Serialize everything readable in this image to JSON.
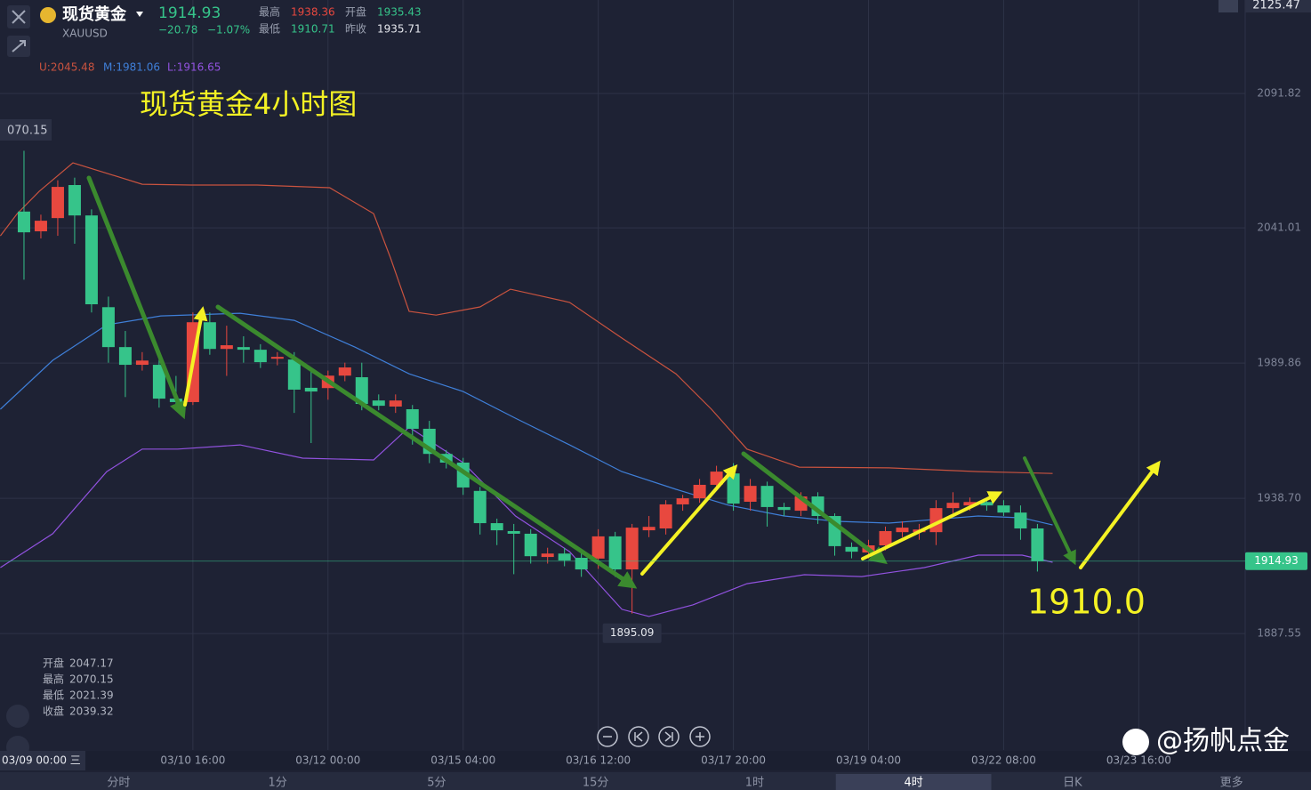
{
  "header": {
    "name": "现货黄金",
    "code": "XAUUSD",
    "price": "1914.93",
    "change": "−20.78",
    "change_pct": "−1.07%",
    "stats": [
      {
        "label": "最高",
        "value": "1938.36"
      },
      {
        "label": "开盘",
        "value": "1935.43"
      },
      {
        "label": "最低",
        "value": "1910.71"
      },
      {
        "label": "昨收",
        "value": "1935.71"
      }
    ]
  },
  "chart_data": {
    "type": "candlestick",
    "title": "现货黄金4小时图",
    "annotation": "1910.0",
    "top_value": "2125.47",
    "left_value": "070.15",
    "crosshair_label": "03/09 00:00 三",
    "ylim": [
      1843.5,
      2127.2
    ],
    "yticks": [
      2091.82,
      2041.01,
      1989.86,
      {
        "value": 1938.7,
        "label": "1938.70"
      },
      1887.55
    ],
    "xlim": [
      -1.42,
      72.3
    ],
    "xticks": [
      {
        "value": 10,
        "label": "03/10 16:00"
      },
      {
        "value": 18,
        "label": "03/12 00:00"
      },
      {
        "value": 26,
        "label": "03/15 04:00"
      },
      {
        "value": 34,
        "label": "03/16 12:00"
      },
      {
        "value": 42,
        "label": "03/17 20:00"
      },
      {
        "value": 50,
        "label": "03/19 04:00"
      },
      {
        "value": 58,
        "label": "03/22 08:00"
      },
      {
        "value": 66,
        "label": "03/23 16:00"
      }
    ],
    "grid": true,
    "up_color": "#e8483f",
    "down_color": "#36c48a",
    "candles": [
      {
        "open": 2047.17,
        "high": 2070.15,
        "low": 2021.39,
        "close": 2039.32
      },
      {
        "open": 2039.7,
        "high": 2046,
        "low": 2037,
        "close": 2043.7
      },
      {
        "open": 2044.7,
        "high": 2059,
        "low": 2038,
        "close": 2056.5
      },
      {
        "open": 2057.2,
        "high": 2060,
        "low": 2035,
        "close": 2045.7
      },
      {
        "open": 2045.7,
        "high": 2048,
        "low": 2009,
        "close": 2012.1
      },
      {
        "open": 2011,
        "high": 2015,
        "low": 1990,
        "close": 1995.9
      },
      {
        "open": 1995.9,
        "high": 2002,
        "low": 1977,
        "close": 1989.2
      },
      {
        "open": 1989.2,
        "high": 1994,
        "low": 1987,
        "close": 1990.8
      },
      {
        "open": 1989.2,
        "high": 1992,
        "low": 1973,
        "close": 1976.4
      },
      {
        "open": 1976.4,
        "high": 1985,
        "low": 1972,
        "close": 1975.1
      },
      {
        "open": 1975.1,
        "high": 2009,
        "low": 1974,
        "close": 2005.3
      },
      {
        "open": 2005.3,
        "high": 2009,
        "low": 1993,
        "close": 1995.2
      },
      {
        "open": 1995.2,
        "high": 2004,
        "low": 1985,
        "close": 1996.6
      },
      {
        "open": 1995.9,
        "high": 2000,
        "low": 1990,
        "close": 1994.9
      },
      {
        "open": 1994.9,
        "high": 1997,
        "low": 1988,
        "close": 1990.2
      },
      {
        "open": 1991.5,
        "high": 1994,
        "low": 1989,
        "close": 1992.2
      },
      {
        "open": 1991.2,
        "high": 1994,
        "low": 1971,
        "close": 1979.8
      },
      {
        "open": 1980.5,
        "high": 1988,
        "low": 1959.6,
        "close": 1979.1
      },
      {
        "open": 1980.4,
        "high": 1987,
        "low": 1976,
        "close": 1985.1
      },
      {
        "open": 1985.1,
        "high": 1990,
        "low": 1983,
        "close": 1988.2
      },
      {
        "open": 1984.5,
        "high": 1990,
        "low": 1972,
        "close": 1974.4
      },
      {
        "open": 1975.7,
        "high": 1978,
        "low": 1972,
        "close": 1973.7
      },
      {
        "open": 1973.4,
        "high": 1978,
        "low": 1971,
        "close": 1975.7
      },
      {
        "open": 1972.4,
        "high": 1974,
        "low": 1959,
        "close": 1965
      },
      {
        "open": 1965,
        "high": 1968,
        "low": 1952,
        "close": 1955.5
      },
      {
        "open": 1955.5,
        "high": 1957,
        "low": 1950,
        "close": 1952.2
      },
      {
        "open": 1952.2,
        "high": 1954,
        "low": 1940,
        "close": 1942.8
      },
      {
        "open": 1941.5,
        "high": 1943,
        "low": 1925,
        "close": 1929.3
      },
      {
        "open": 1929.3,
        "high": 1931,
        "low": 1921,
        "close": 1926.6
      },
      {
        "open": 1926.3,
        "high": 1929,
        "low": 1910,
        "close": 1925.3
      },
      {
        "open": 1925.3,
        "high": 1927,
        "low": 1914,
        "close": 1916.8
      },
      {
        "open": 1916.5,
        "high": 1920,
        "low": 1914,
        "close": 1917.8
      },
      {
        "open": 1917.8,
        "high": 1920,
        "low": 1913,
        "close": 1915.2
      },
      {
        "open": 1916.2,
        "high": 1919,
        "low": 1909,
        "close": 1911.8
      },
      {
        "open": 1915.9,
        "high": 1927,
        "low": 1912,
        "close": 1924.3
      },
      {
        "open": 1924.3,
        "high": 1926,
        "low": 1909,
        "close": 1911.8
      },
      {
        "open": 1911.8,
        "high": 1929,
        "low": 1895.09,
        "close": 1927.6
      },
      {
        "open": 1926.6,
        "high": 1932,
        "low": 1924,
        "close": 1927.9
      },
      {
        "open": 1927.3,
        "high": 1938,
        "low": 1925,
        "close": 1936.4
      },
      {
        "open": 1936.4,
        "high": 1940,
        "low": 1934,
        "close": 1938.7
      },
      {
        "open": 1938.7,
        "high": 1946,
        "low": 1937,
        "close": 1943.8
      },
      {
        "open": 1943.8,
        "high": 1951,
        "low": 1942,
        "close": 1948.8
      },
      {
        "open": 1948.1,
        "high": 1952,
        "low": 1934,
        "close": 1936.7
      },
      {
        "open": 1937.4,
        "high": 1946,
        "low": 1934,
        "close": 1943.4
      },
      {
        "open": 1943.4,
        "high": 1945,
        "low": 1928,
        "close": 1935.4
      },
      {
        "open": 1935.4,
        "high": 1937,
        "low": 1932,
        "close": 1934.3
      },
      {
        "open": 1934,
        "high": 1941,
        "low": 1932,
        "close": 1939.4
      },
      {
        "open": 1939.4,
        "high": 1941,
        "low": 1929,
        "close": 1932
      },
      {
        "open": 1932,
        "high": 1933,
        "low": 1917,
        "close": 1920.6
      },
      {
        "open": 1920.3,
        "high": 1922,
        "low": 1916,
        "close": 1918.5
      },
      {
        "open": 1918.2,
        "high": 1923,
        "low": 1916,
        "close": 1920.9
      },
      {
        "open": 1920.9,
        "high": 1928,
        "low": 1919,
        "close": 1926.3
      },
      {
        "open": 1925.9,
        "high": 1930,
        "low": 1924,
        "close": 1927.6
      },
      {
        "open": 1925.9,
        "high": 1929,
        "low": 1923,
        "close": 1926.9
      },
      {
        "open": 1925.9,
        "high": 1938,
        "low": 1921,
        "close": 1935
      },
      {
        "open": 1935,
        "high": 1941,
        "low": 1933,
        "close": 1937
      },
      {
        "open": 1936,
        "high": 1939,
        "low": 1934,
        "close": 1937.3
      },
      {
        "open": 1937.3,
        "high": 1939,
        "low": 1934,
        "close": 1936
      },
      {
        "open": 1936,
        "high": 1938,
        "low": 1932,
        "close": 1933.3
      },
      {
        "open": 1933.3,
        "high": 1936,
        "low": 1923,
        "close": 1927.3
      },
      {
        "open": 1927.3,
        "high": 1929,
        "low": 1911,
        "close": 1914.93
      }
    ],
    "bands": [
      {
        "name": "U",
        "label": "U:2045.48",
        "color": "#c9533f",
        "x": [
          -1.4,
          -0.4,
          0.9,
          2.9,
          7.0,
          9.9,
          13.8,
          18.1,
          20.7,
          21.7,
          22.8,
          24.4,
          27.0,
          28.8,
          32.3,
          35.4,
          38.6,
          40.7,
          42.8,
          45.9,
          51.2,
          56.5,
          60.9
        ],
        "values": [
          2038.0,
          2046.4,
          2054.8,
          2065.6,
          2057.5,
          2057.2,
          2057.2,
          2056.2,
          2046.4,
          2029.6,
          2009.4,
          2008.0,
          2011.1,
          2017.8,
          2012.8,
          1999.3,
          1985.8,
          1972.4,
          1957.3,
          1950.5,
          1950.2,
          1948.8,
          1948.1
        ]
      },
      {
        "name": "M",
        "label": "M:1981.06",
        "color": "#3f7fd8",
        "x": [
          -1.4,
          1.7,
          4.9,
          8.1,
          12.8,
          16.0,
          19.6,
          22.8,
          26.0,
          29.1,
          32.3,
          35.4,
          38.6,
          41.7,
          45.0,
          48.1,
          51.2,
          56.5,
          59.1,
          60.9
        ],
        "values": [
          1972.4,
          1990.9,
          2004.3,
          2007.7,
          2008.7,
          2006.0,
          1995.9,
          1985.8,
          1979.1,
          1969.0,
          1958.9,
          1948.8,
          1942.1,
          1936.1,
          1932.0,
          1930.0,
          1929.3,
          1932.0,
          1931.3,
          1928.6
        ]
      },
      {
        "name": "L",
        "label": "L:1916.65",
        "color": "#9152df",
        "x": [
          -1.4,
          1.7,
          4.9,
          7.0,
          9.1,
          12.8,
          16.5,
          20.7,
          22.8,
          26.0,
          29.1,
          32.3,
          35.4,
          37.0,
          39.6,
          42.8,
          46.2,
          49.6,
          53.3,
          56.5,
          59.1,
          60.9
        ],
        "values": [
          1912.5,
          1925.3,
          1948.8,
          1957.3,
          1957.3,
          1958.9,
          1953.9,
          1953.2,
          1965.6,
          1952.2,
          1932.0,
          1918.5,
          1896.7,
          1894.0,
          1898.4,
          1906.4,
          1909.8,
          1909.1,
          1912.5,
          1917.2,
          1917.2,
          1914.5
        ]
      }
    ],
    "ohlc_box": [
      {
        "label": "开盘",
        "value": "2047.17"
      },
      {
        "label": "最高",
        "value": "2070.15"
      },
      {
        "label": "最低",
        "value": "2021.39"
      },
      {
        "label": "收盘",
        "value": "2039.32"
      }
    ]
  },
  "toolbar": {
    "tabs": [
      {
        "label": "分时"
      },
      {
        "label": "1分"
      },
      {
        "label": "5分"
      },
      {
        "label": "15分"
      },
      {
        "label": "1时"
      },
      {
        "label": "4时",
        "selected": true
      },
      {
        "label": "日K"
      },
      {
        "label": "更多"
      }
    ]
  },
  "watermark": "@扬帆点金"
}
